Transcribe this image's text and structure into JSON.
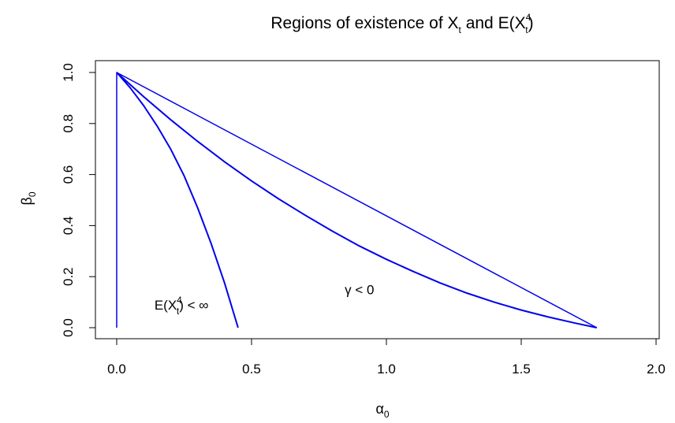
{
  "chart_data": {
    "type": "line",
    "title": "Regions of existence of X_t and E(X_t^4)",
    "title_parts": {
      "prefix": "Regions of existence of X",
      "sub1": "t",
      "middle": " and E(X",
      "sup2": "4",
      "sub2": "t",
      "suffix": ")"
    },
    "xlabel": "α₀",
    "ylabel": "β₀",
    "xlabel_parts": {
      "base": "α",
      "sub": "0"
    },
    "ylabel_parts": {
      "base": "β",
      "sub": "0"
    },
    "xlim": [
      0,
      2.0
    ],
    "ylim": [
      0,
      1.0
    ],
    "x_ticks": [
      "0.0",
      "0.5",
      "1.0",
      "1.5",
      "2.0"
    ],
    "y_ticks": [
      "0.0",
      "0.2",
      "0.4",
      "0.6",
      "0.8",
      "1.0"
    ],
    "grid": false,
    "line_color": "#0000ee",
    "series": [
      {
        "x": [
          0.0,
          0.1,
          0.2,
          0.3,
          0.4,
          0.5,
          0.6,
          0.7,
          0.8,
          0.9,
          1.0,
          1.1,
          1.2,
          1.3,
          1.4,
          1.5,
          1.6,
          1.7,
          1.78
        ],
        "y": [
          1.0,
          0.905,
          0.815,
          0.73,
          0.65,
          0.575,
          0.505,
          0.44,
          0.378,
          0.32,
          0.268,
          0.22,
          0.175,
          0.135,
          0.1,
          0.069,
          0.042,
          0.018,
          0.0
        ]
      },
      {
        "x": [
          0.0,
          0.05,
          0.1,
          0.15,
          0.2,
          0.25,
          0.3,
          0.35,
          0.4,
          0.45
        ],
        "y": [
          1.0,
          0.94,
          0.87,
          0.79,
          0.7,
          0.595,
          0.47,
          0.33,
          0.175,
          0.0
        ]
      },
      {
        "x": [
          0.0,
          0.0,
          1.78
        ],
        "y": [
          0.0,
          1.0,
          0.0
        ]
      }
    ],
    "annotations": [
      {
        "x": 0.24,
        "y": 0.09,
        "text": "E(X_t^4) < ∞",
        "parts": {
          "prefix": "E(X",
          "sup": "4",
          "sub": "t",
          "suffix": ") < ∞"
        }
      },
      {
        "x": 0.9,
        "y": 0.15,
        "text": "γ < 0"
      }
    ]
  }
}
